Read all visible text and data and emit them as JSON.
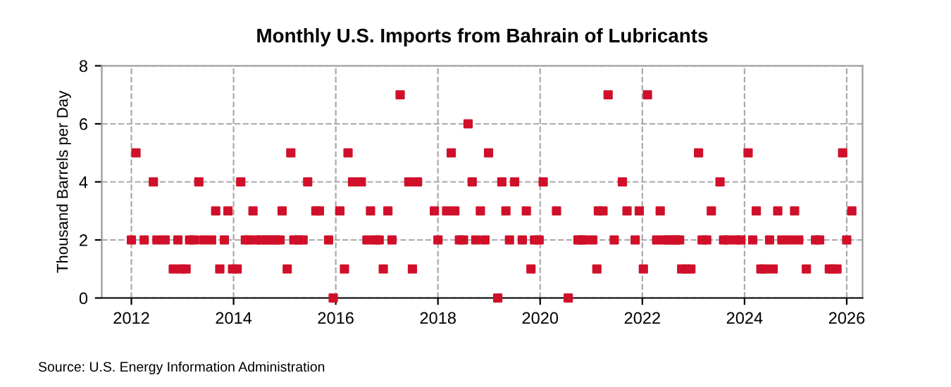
{
  "chart_data": {
    "type": "scatter",
    "title": "Monthly U.S. Imports from Bahrain of Lubricants",
    "ylabel": "Thousand Barrels per Day",
    "annotations": [
      "Source: U.S. Energy Information Administration"
    ],
    "x": [
      2012.0,
      2012.09,
      2012.25,
      2012.43,
      2012.5,
      2012.66,
      2012.82,
      2012.91,
      2012.98,
      2013.07,
      2013.14,
      2013.23,
      2013.32,
      2013.41,
      2013.57,
      2013.65,
      2013.73,
      2013.82,
      2013.89,
      2013.98,
      2014.07,
      2014.14,
      2014.23,
      2014.3,
      2014.38,
      2014.45,
      2014.55,
      2014.64,
      2014.73,
      2014.82,
      2014.91,
      2014.95,
      2015.05,
      2015.12,
      2015.18,
      2015.27,
      2015.36,
      2015.45,
      2015.61,
      2015.68,
      2015.86,
      2015.95,
      2016.08,
      2016.17,
      2016.24,
      2016.33,
      2016.5,
      2016.61,
      2016.68,
      2016.77,
      2016.85,
      2016.93,
      2017.02,
      2017.1,
      2017.26,
      2017.43,
      2017.5,
      2017.6,
      2017.93,
      2018.0,
      2018.17,
      2018.26,
      2018.33,
      2018.42,
      2018.5,
      2018.59,
      2018.67,
      2018.74,
      2018.83,
      2018.92,
      2018.99,
      2019.17,
      2019.25,
      2019.33,
      2019.4,
      2019.5,
      2019.65,
      2019.73,
      2019.82,
      2019.89,
      2019.98,
      2020.06,
      2020.32,
      2020.55,
      2020.74,
      2020.81,
      2020.86,
      2021.03,
      2021.11,
      2021.14,
      2021.23,
      2021.33,
      2021.45,
      2021.61,
      2021.7,
      2021.86,
      2021.94,
      2022.02,
      2022.1,
      2022.28,
      2022.35,
      2022.43,
      2022.51,
      2022.59,
      2022.66,
      2022.73,
      2022.77,
      2022.86,
      2022.95,
      2023.1,
      2023.17,
      2023.26,
      2023.35,
      2023.52,
      2023.59,
      2023.68,
      2023.84,
      2023.93,
      2024.07,
      2024.16,
      2024.23,
      2024.32,
      2024.39,
      2024.49,
      2024.56,
      2024.65,
      2024.73,
      2024.89,
      2024.98,
      2025.06,
      2025.21,
      2025.39,
      2025.47,
      2025.66,
      2025.73,
      2025.81,
      2025.92,
      2026.0,
      2026.1
    ],
    "series": [
      {
        "color": "#d0102a",
        "values": [
          2,
          5,
          2,
          4,
          2,
          2,
          1,
          2,
          1,
          1,
          2,
          2,
          4,
          2,
          2,
          3,
          1,
          2,
          3,
          1,
          1,
          4,
          2,
          2,
          3,
          2,
          2,
          2,
          2,
          2,
          2,
          3,
          1,
          5,
          2,
          2,
          2,
          4,
          3,
          3,
          2,
          0,
          3,
          1,
          5,
          4,
          4,
          2,
          3,
          2,
          2,
          1,
          3,
          2,
          7,
          4,
          1,
          4,
          3,
          2,
          3,
          5,
          3,
          2,
          2,
          6,
          4,
          2,
          3,
          2,
          5,
          0,
          4,
          3,
          2,
          4,
          2,
          3,
          1,
          2,
          2,
          4,
          3,
          0,
          2,
          2,
          2,
          2,
          1,
          3,
          3,
          7,
          2,
          4,
          3,
          2,
          3,
          1,
          7,
          2,
          3,
          2,
          2,
          2,
          2,
          2,
          1,
          1,
          1,
          5,
          2,
          2,
          3,
          4,
          2,
          2,
          2,
          2,
          5,
          2,
          3,
          1,
          1,
          2,
          1,
          3,
          2,
          2,
          3,
          2,
          1,
          2,
          2,
          1,
          1,
          1,
          5,
          2,
          3
        ]
      }
    ],
    "xlim": [
      2011.42,
      2026.31
    ],
    "xticks": [
      2012,
      2014,
      2016,
      2018,
      2020,
      2022,
      2024,
      2026
    ],
    "ylim": [
      0,
      8
    ],
    "yticks": [
      0,
      2,
      4,
      6,
      8
    ],
    "grid": true,
    "marker": "square"
  }
}
